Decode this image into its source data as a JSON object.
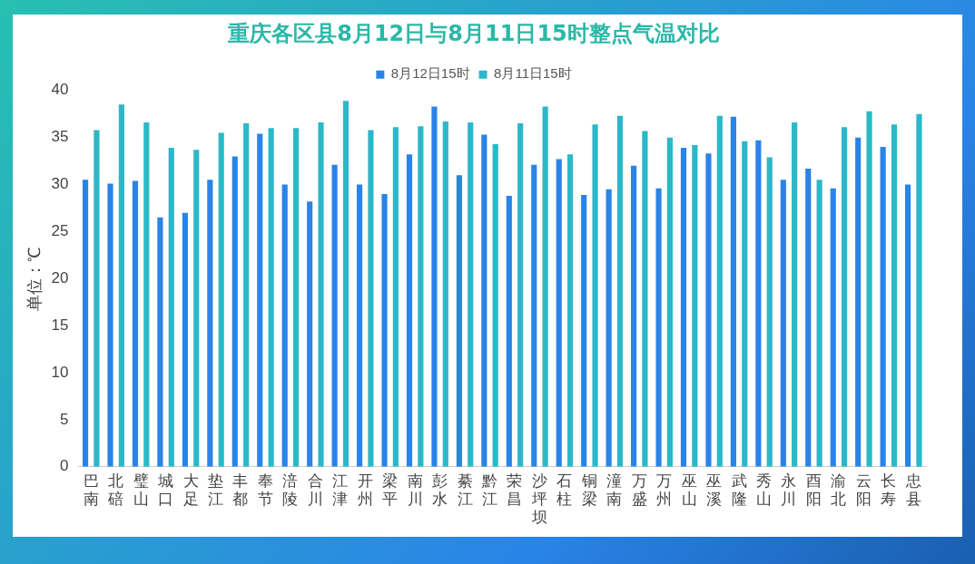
{
  "chart_data": {
    "type": "bar",
    "title": "重庆各区县8月12日与8月11日15时整点气温对比",
    "ylabel": "单位：℃",
    "categories": [
      "巴南",
      "北碚",
      "璧山",
      "城口",
      "大足",
      "垫江",
      "丰都",
      "奉节",
      "涪陵",
      "合川",
      "江津",
      "开州",
      "梁平",
      "南川",
      "彭水",
      "綦江",
      "黔江",
      "荣昌",
      "沙坪坝",
      "石柱",
      "铜梁",
      "潼南",
      "万盛",
      "万州",
      "巫山",
      "巫溪",
      "武隆",
      "秀山",
      "永川",
      "酉阳",
      "渝北",
      "云阳",
      "长寿",
      "忠县"
    ],
    "series": [
      {
        "name": "8月12日15时",
        "color": "#2a84e8",
        "values": [
          30.5,
          30.1,
          30.4,
          26.5,
          27.0,
          30.5,
          33.0,
          35.4,
          30.0,
          28.2,
          32.1,
          30.0,
          29.0,
          33.2,
          38.3,
          31.0,
          35.3,
          28.8,
          32.1,
          32.7,
          28.9,
          29.5,
          32.0,
          29.6,
          33.9,
          33.3,
          37.2,
          34.7,
          30.5,
          31.7,
          29.6,
          35.0,
          34.0,
          30.0
        ]
      },
      {
        "name": "8月11日15时",
        "color": "#2bb8c8",
        "values": [
          35.8,
          38.5,
          36.6,
          33.9,
          33.7,
          35.5,
          36.5,
          36.0,
          36.0,
          36.6,
          38.9,
          35.8,
          36.1,
          36.2,
          36.7,
          36.6,
          34.3,
          36.5,
          38.3,
          33.2,
          36.4,
          37.3,
          35.7,
          35.0,
          34.2,
          37.3,
          34.6,
          32.9,
          36.6,
          30.5,
          36.1,
          37.8,
          36.4,
          37.5
        ]
      }
    ],
    "ylim": [
      0,
      40
    ],
    "yticks": [
      0,
      5,
      10,
      15,
      20,
      25,
      30,
      35,
      40
    ],
    "grid": false,
    "legend": "top"
  }
}
